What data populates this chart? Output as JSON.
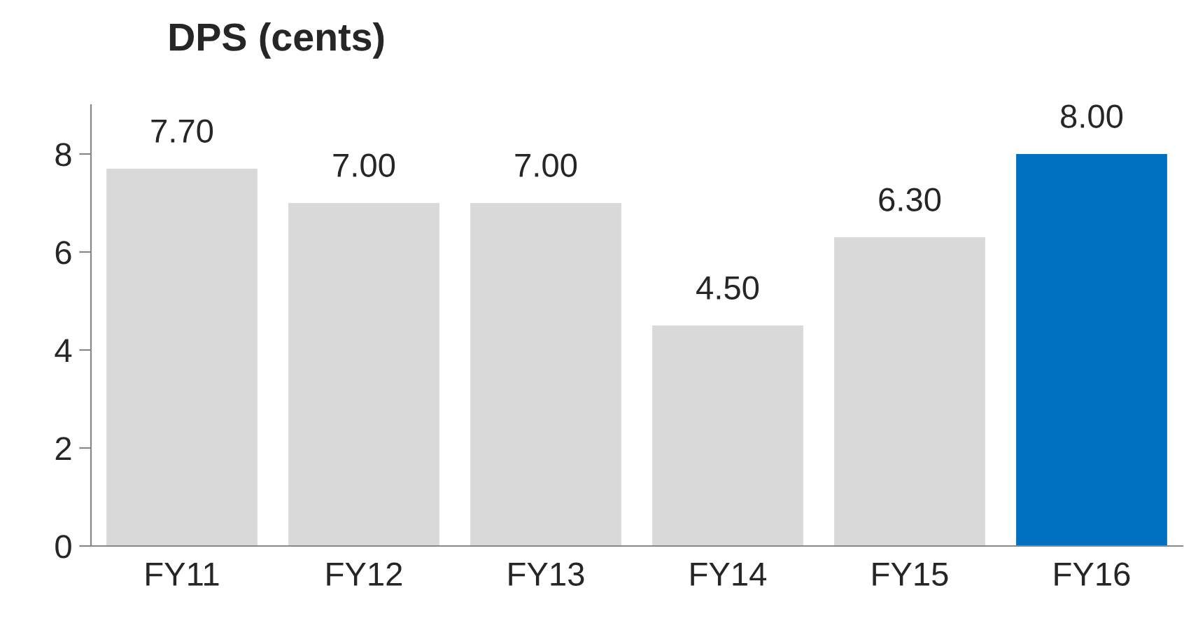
{
  "chart_data": {
    "type": "bar",
    "title": "DPS (cents)",
    "categories": [
      "FY11",
      "FY12",
      "FY13",
      "FY14",
      "FY15",
      "FY16"
    ],
    "values": [
      7.7,
      7.0,
      7.0,
      4.5,
      6.3,
      8.0
    ],
    "colors": [
      "#d9d9d9",
      "#d9d9d9",
      "#d9d9d9",
      "#d9d9d9",
      "#d9d9d9",
      "#0070c0"
    ],
    "value_labels": [
      "7.70",
      "7.00",
      "7.00",
      "4.50",
      "6.30",
      "8.00"
    ],
    "ylim": [
      0,
      9
    ],
    "yticks": [
      0,
      2,
      4,
      6,
      8
    ],
    "grid": false,
    "legend": false
  }
}
